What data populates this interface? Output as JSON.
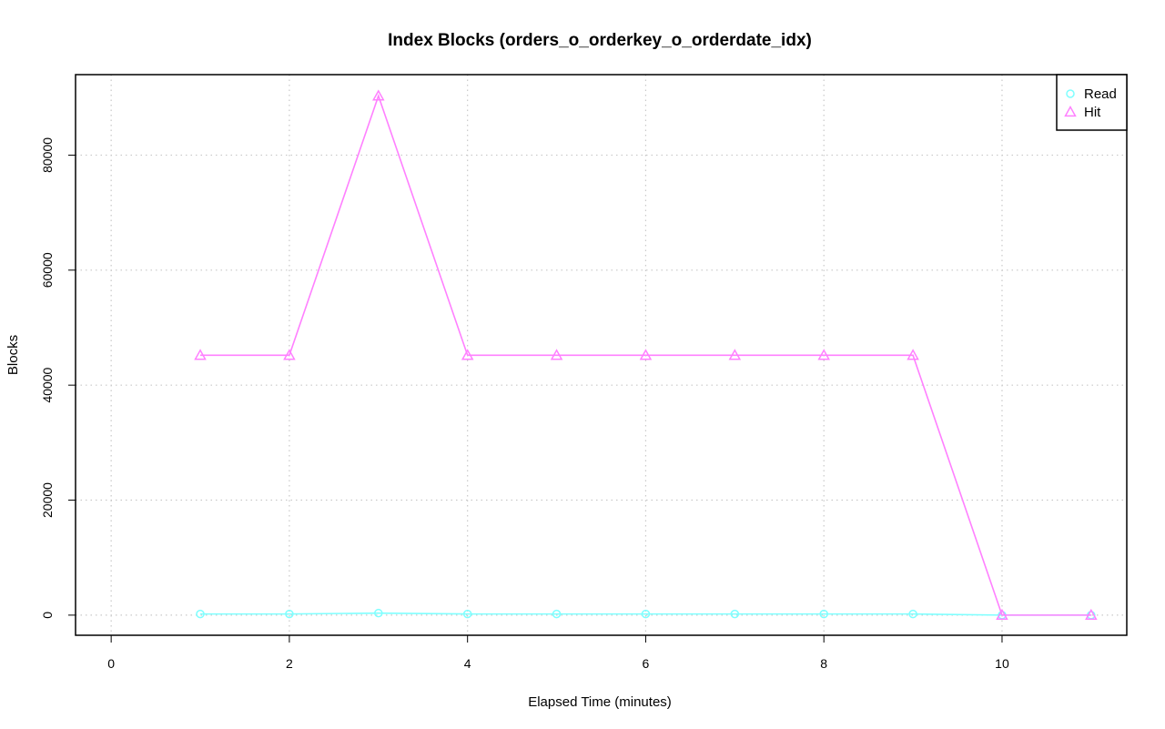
{
  "chart_data": {
    "type": "line",
    "title": "Index Blocks (orders_o_orderkey_o_orderdate_idx)",
    "xlabel": "Elapsed Time (minutes)",
    "ylabel": "Blocks",
    "xlim": [
      -0.4,
      11.4
    ],
    "ylim": [
      -3500,
      94000
    ],
    "x_ticks": [
      0,
      2,
      4,
      6,
      8,
      10
    ],
    "y_ticks": [
      0,
      20000,
      40000,
      60000,
      80000
    ],
    "grid": true,
    "legend_position": "top-right",
    "x": [
      1,
      2,
      3,
      4,
      5,
      6,
      7,
      8,
      9,
      10,
      11
    ],
    "series": [
      {
        "name": "Read",
        "color": "#7FFFFF",
        "marker": "circle",
        "values": [
          200,
          200,
          350,
          200,
          200,
          200,
          200,
          200,
          200,
          0,
          0
        ]
      },
      {
        "name": "Hit",
        "color": "#FF80FF",
        "marker": "triangle",
        "values": [
          45200,
          45200,
          90300,
          45200,
          45200,
          45200,
          45200,
          45200,
          45200,
          0,
          0
        ]
      }
    ]
  }
}
